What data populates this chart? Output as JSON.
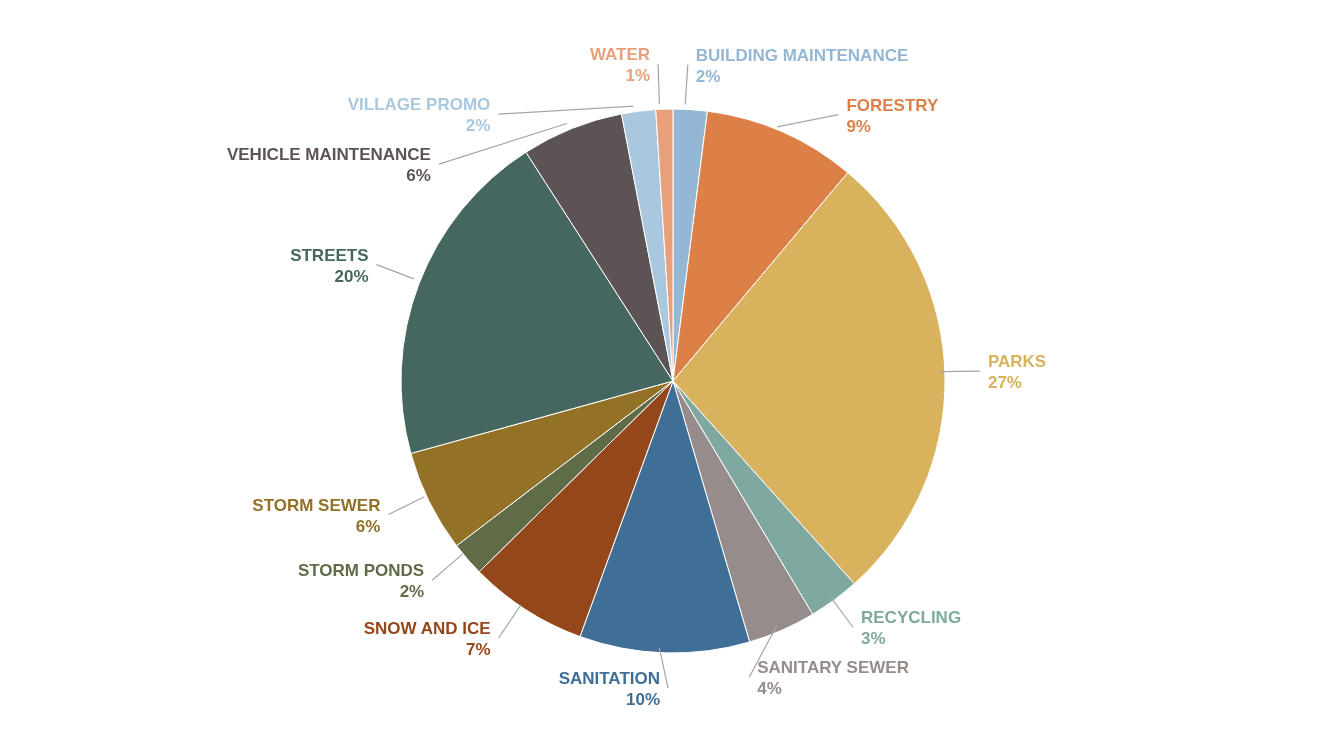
{
  "chart_data": {
    "type": "pie",
    "categories": [
      "BUILDING MAINTENANCE",
      "FORESTRY",
      "PARKS",
      "RECYCLING",
      "SANITARY SEWER",
      "SANITATION",
      "SNOW AND ICE",
      "STORM PONDS",
      "STORM SEWER",
      "STREETS",
      "VEHICLE MAINTENANCE",
      "VILLAGE PROMO",
      "WATER"
    ],
    "values": [
      2,
      9,
      27,
      3,
      4,
      10,
      7,
      2,
      6,
      20,
      6,
      2,
      1
    ],
    "colors": [
      "#93b7d4",
      "#dd8047",
      "#d8b25c",
      "#7ea8a0",
      "#968c8c",
      "#3f6f97",
      "#94471b",
      "#5f6c47",
      "#937126",
      "#46675f",
      "#5c5354",
      "#a9c8df",
      "#e8a07a"
    ],
    "value_labels": [
      "2%",
      "9%",
      "27%",
      "3%",
      "4%",
      "10%",
      "7%",
      "2%",
      "6%",
      "20%",
      "6%",
      "2%",
      "1%"
    ],
    "legend": false
  }
}
